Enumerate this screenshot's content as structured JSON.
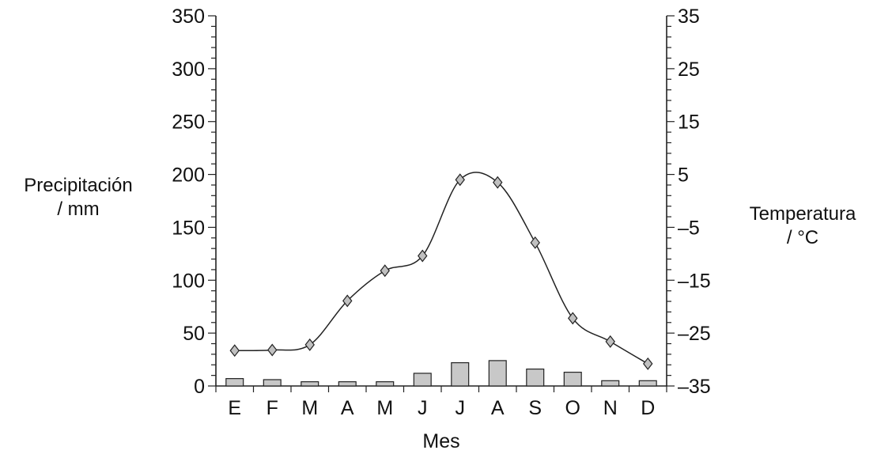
{
  "chart_data": {
    "type": "bar+line",
    "categories": [
      "E",
      "F",
      "M",
      "A",
      "M",
      "J",
      "J",
      "A",
      "S",
      "O",
      "N",
      "D"
    ],
    "xlabel": "Mes",
    "ylabel_left": [
      "Precipitación",
      "/ mm"
    ],
    "ylabel_right": [
      "Temperatura",
      "/ °C"
    ],
    "ylim_left": [
      0,
      350
    ],
    "ylim_right": [
      -35,
      35
    ],
    "left_ticks": [
      0,
      50,
      100,
      150,
      200,
      250,
      300,
      350
    ],
    "right_tick_labels": [
      "–35",
      "–25",
      "–15",
      "–5",
      "5",
      "15",
      "25",
      "35"
    ],
    "right_tick_values": [
      -35,
      -25,
      -15,
      -5,
      5,
      15,
      25,
      35
    ],
    "series": [
      {
        "kind": "bar",
        "axis": "left",
        "values": [
          7,
          6,
          4,
          4,
          4,
          12,
          22,
          24,
          16,
          13,
          5,
          5
        ]
      },
      {
        "kind": "line",
        "axis": "right",
        "marker": "diamond",
        "values": [
          -28.3,
          -28.2,
          -27.2,
          -18.9,
          -13.2,
          -10.4,
          4.0,
          3.5,
          -7.9,
          -22.2,
          -26.6,
          -30.8
        ]
      }
    ],
    "colors": {
      "bar_fill": "#c8c8c8",
      "marker_fill": "#c0c0c0",
      "line": "#222222"
    },
    "grid": false
  }
}
